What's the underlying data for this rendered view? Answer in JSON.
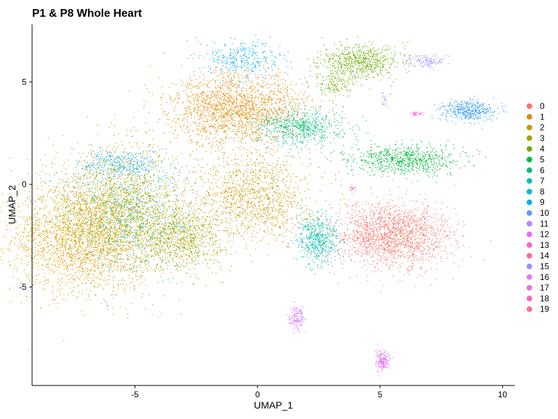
{
  "chart_data": {
    "type": "scatter",
    "title": "P1 & P8 Whole Heart",
    "xlabel": "UMAP_1",
    "ylabel": "UMAP_2",
    "xlim": [
      -9.2,
      10.5
    ],
    "ylim": [
      -9.8,
      7.8
    ],
    "x_ticks": [
      -5,
      0,
      5,
      10
    ],
    "x_tick_labels": [
      "-5",
      "0",
      "5",
      "10"
    ],
    "y_ticks": [
      5,
      0,
      -5
    ],
    "y_tick_labels": [
      "5",
      "0",
      "-5"
    ],
    "grid": false,
    "legend_placement": "right",
    "legend": [
      {
        "label": "0",
        "color": "#F8766D"
      },
      {
        "label": "1",
        "color": "#E58700"
      },
      {
        "label": "2",
        "color": "#C99800"
      },
      {
        "label": "3",
        "color": "#A3A500"
      },
      {
        "label": "4",
        "color": "#6BB100"
      },
      {
        "label": "5",
        "color": "#00BA38"
      },
      {
        "label": "6",
        "color": "#00BF7D"
      },
      {
        "label": "7",
        "color": "#00C0AF"
      },
      {
        "label": "8",
        "color": "#00BCD8"
      },
      {
        "label": "9",
        "color": "#00B0F6"
      },
      {
        "label": "10",
        "color": "#619CFF"
      },
      {
        "label": "11",
        "color": "#B983FF"
      },
      {
        "label": "12",
        "color": "#E76BF3"
      },
      {
        "label": "13",
        "color": "#FD61D1"
      },
      {
        "label": "14",
        "color": "#FF67A4"
      },
      {
        "label": "15",
        "color": "#9590FF"
      },
      {
        "label": "16",
        "color": "#D97EFF"
      },
      {
        "label": "17",
        "color": "#F36AE0"
      },
      {
        "label": "18",
        "color": "#FF62BC"
      },
      {
        "label": "19",
        "color": "#FF6C91"
      }
    ],
    "clusters": [
      {
        "color": "#E6A000",
        "cx": -7.2,
        "cy": -2.6,
        "sx": 1.4,
        "sy": 1.3,
        "n": 2200
      },
      {
        "color": "#A3A500",
        "cx": -5.6,
        "cy": -1.2,
        "sx": 1.5,
        "sy": 1.5,
        "n": 2200
      },
      {
        "color": "#A3A500",
        "cx": -3.2,
        "cy": -2.6,
        "sx": 0.9,
        "sy": 0.8,
        "n": 900
      },
      {
        "color": "#00BCD8",
        "cx": -5.2,
        "cy": -1.5,
        "sx": 1.3,
        "sy": 1.4,
        "n": 500
      },
      {
        "color": "#00B0F6",
        "cx": -5.6,
        "cy": 1.0,
        "sx": 0.8,
        "sy": 0.35,
        "n": 260
      },
      {
        "color": "#C99800",
        "cx": -0.1,
        "cy": -0.6,
        "sx": 1.1,
        "sy": 1.1,
        "n": 1200
      },
      {
        "color": "#E58700",
        "cx": -0.8,
        "cy": 3.7,
        "sx": 1.4,
        "sy": 0.85,
        "n": 1800
      },
      {
        "color": "#00B0F6",
        "cx": -0.6,
        "cy": 6.1,
        "sx": 0.8,
        "sy": 0.45,
        "n": 320
      },
      {
        "color": "#00BF7D",
        "cx": 1.8,
        "cy": 2.8,
        "sx": 0.9,
        "sy": 0.45,
        "n": 650
      },
      {
        "color": "#6BB100",
        "cx": 4.2,
        "cy": 6.0,
        "sx": 0.8,
        "sy": 0.4,
        "n": 650
      },
      {
        "color": "#6BB100",
        "cx": 3.2,
        "cy": 4.9,
        "sx": 0.5,
        "sy": 0.3,
        "n": 160
      },
      {
        "color": "#00BA38",
        "cx": 6.0,
        "cy": 1.2,
        "sx": 1.1,
        "sy": 0.35,
        "n": 750
      },
      {
        "color": "#F8766D",
        "cx": 5.5,
        "cy": -2.5,
        "sx": 1.2,
        "sy": 0.8,
        "n": 1800
      },
      {
        "color": "#00C0AF",
        "cx": 2.5,
        "cy": -2.7,
        "sx": 0.45,
        "sy": 0.6,
        "n": 520
      },
      {
        "color": "#D97EFF",
        "cx": 1.6,
        "cy": -6.5,
        "sx": 0.15,
        "sy": 0.25,
        "n": 150
      },
      {
        "color": "#E76BF3",
        "cx": 5.1,
        "cy": -8.6,
        "sx": 0.15,
        "sy": 0.25,
        "n": 170
      },
      {
        "color": "#9590FF",
        "cx": 6.9,
        "cy": 6.0,
        "sx": 0.35,
        "sy": 0.15,
        "n": 120
      },
      {
        "color": "#3E9DF8",
        "cx": 8.6,
        "cy": 3.6,
        "sx": 0.55,
        "sy": 0.25,
        "n": 450
      },
      {
        "color": "#FD61D1",
        "cx": 6.5,
        "cy": 3.45,
        "sx": 0.12,
        "sy": 0.06,
        "n": 35
      },
      {
        "color": "#FF62BC",
        "cx": 3.9,
        "cy": -0.2,
        "sx": 0.08,
        "sy": 0.06,
        "n": 16
      },
      {
        "color": "#A0A0F0",
        "cx": 5.2,
        "cy": 4.2,
        "sx": 0.1,
        "sy": 0.2,
        "n": 25
      }
    ]
  }
}
